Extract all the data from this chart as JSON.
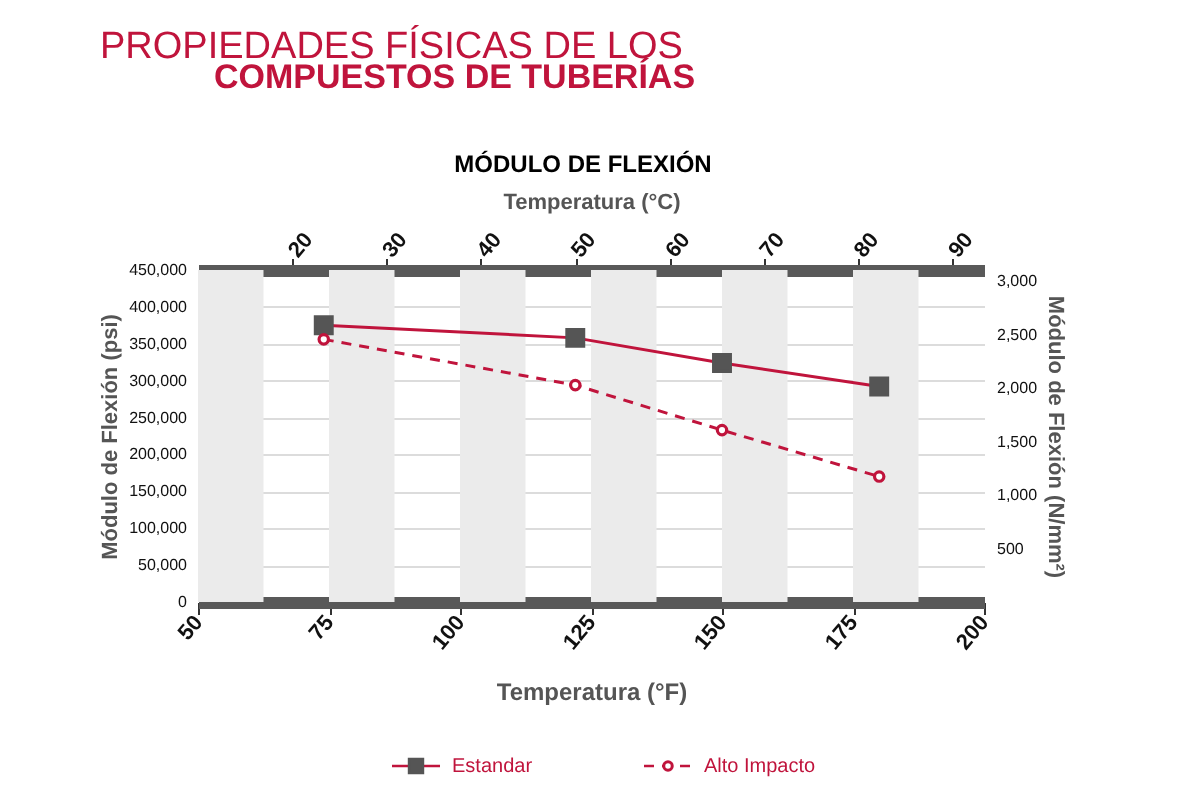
{
  "chart_data": {
    "type": "line",
    "title": "MÓDULO DE FLEXIÓN",
    "annotations": [
      "PROPIEDADES FÍSICAS DE LOS",
      "COMPUESTOS DE TUBERÍAS"
    ],
    "xlabel": "Temperatura (°F)",
    "x2label": "Temperatura (°C)",
    "ylabel": "Módulo de Flexión (psi)",
    "y2label": "Módulo de Flexión (N/mm²)",
    "x": [
      74,
      122,
      150,
      180
    ],
    "series": [
      {
        "name": "Estandar",
        "color": "#c0143c",
        "marker": "square",
        "line_style": "solid",
        "values": [
          375000,
          358000,
          324000,
          292000
        ]
      },
      {
        "name": "Alto Impacto",
        "color": "#c0143c",
        "marker": "circle",
        "line_style": "dashed",
        "values": [
          356000,
          294000,
          233000,
          170000
        ]
      }
    ],
    "xlim": [
      50,
      200
    ],
    "xticks": [
      50,
      75,
      100,
      125,
      150,
      175,
      200
    ],
    "x2lim": [
      10,
      93.33
    ],
    "x2ticks": [
      20,
      30,
      40,
      50,
      60,
      70,
      80,
      90
    ],
    "ylim": [
      0,
      450000
    ],
    "yticks": [
      0,
      {
        "value": 50000,
        "label": "50,000"
      },
      {
        "value": 100000,
        "label": "100,000"
      },
      {
        "value": 150000,
        "label": "150,000"
      },
      {
        "value": 200000,
        "label": "200,000"
      },
      {
        "value": 250000,
        "label": "250,000"
      },
      {
        "value": 300000,
        "label": "300,000"
      },
      {
        "value": 350000,
        "label": "350,000"
      },
      {
        "value": 400000,
        "label": "400,000"
      },
      {
        "value": 450000,
        "label": "450,000"
      }
    ],
    "y2lim": [
      0,
      3103
    ],
    "y2ticks": [
      500,
      {
        "value": 1000,
        "label": "1,000"
      },
      {
        "value": 1500,
        "label": "1,500"
      },
      {
        "value": 2000,
        "label": "2,000"
      },
      {
        "value": 2500,
        "label": "2,500"
      },
      {
        "value": 3000,
        "label": "3,000"
      }
    ],
    "bands": [
      {
        "axis": "x",
        "from": 50,
        "to": 62.5,
        "color": "#ebebeb"
      },
      {
        "axis": "x",
        "from": 75,
        "to": 87.5,
        "color": "#ebebeb"
      },
      {
        "axis": "x",
        "from": 100,
        "to": 112.5,
        "color": "#ebebeb"
      },
      {
        "axis": "x",
        "from": 125,
        "to": 137.5,
        "color": "#ebebeb"
      },
      {
        "axis": "x",
        "from": 150,
        "to": 162.5,
        "color": "#ebebeb"
      },
      {
        "axis": "x",
        "from": 175,
        "to": 187.5,
        "color": "#ebebeb"
      }
    ],
    "grid": "y",
    "legend": "bottom"
  }
}
